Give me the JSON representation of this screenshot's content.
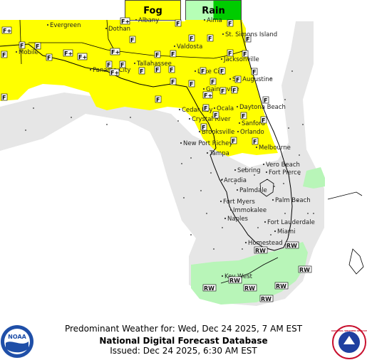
{
  "legend": [
    {
      "label": "Fog",
      "color": "#ffff00"
    },
    {
      "label": "Rain",
      "color_light": "#b6ffb6",
      "color_dark": "#00cc00"
    }
  ],
  "map": {
    "colors": {
      "fog": "#ffff00",
      "rain": "#b8f5b8",
      "nodata": "#e6e6e6",
      "coast": "#000000"
    },
    "cities": [
      "Albany",
      "Alma",
      "Dothan",
      "Evergreen",
      "St. Simons Island",
      "Valdosta",
      "Mobile",
      "Jacksonville",
      "Tallahassee",
      "Panama City",
      "Lake City",
      "St. Augustine",
      "Gainesville",
      "Ocala",
      "Daytona Beach",
      "Cedar Key",
      "Crystal River",
      "Sanford",
      "Orlando",
      "Brooksville",
      "Melbourne",
      "New Port Richey",
      "Tampa",
      "Sebring",
      "Vero Beach",
      "Fort Pierce",
      "Arcadia",
      "Palmdale",
      "Fort Myers",
      "Immokalee",
      "Palm Beach",
      "Naples",
      "Fort Lauderdale",
      "Miami",
      "Homestead",
      "Key West"
    ],
    "symbols": {
      "fog": "F",
      "fog_plus": "F+",
      "rain": "RW"
    }
  },
  "footer": {
    "line1": "Predominant Weather for: Wed, Dec 24 2025, 7 AM EST",
    "line2": "National Digital Forecast Database",
    "line3": "Issued: Dec 24 2025, 6:30 AM EST"
  },
  "logos": {
    "noaa_text": "NOAA",
    "nws_text": "NATIONAL WEATHER SERVICE"
  }
}
